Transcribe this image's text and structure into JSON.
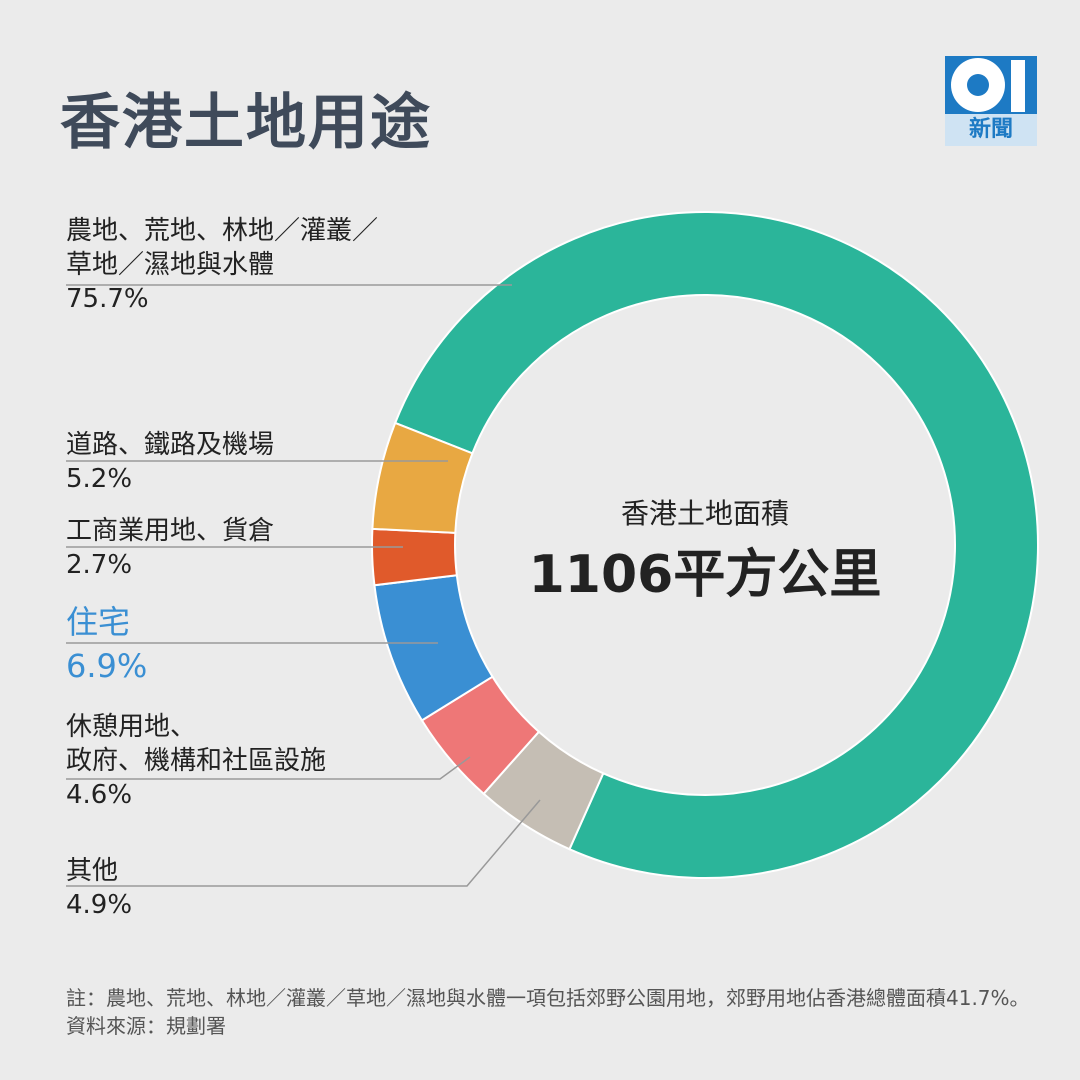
{
  "title": "香港土地用途",
  "logo": {
    "text": "新聞",
    "mark": "01"
  },
  "chart_data": {
    "type": "pie",
    "title": "香港土地用途",
    "center_label": "香港土地面積",
    "center_value": "1106平方公里",
    "start_angle_deg": 291.5,
    "slices": [
      {
        "label": "農地、荒地、林地／灌叢／草地／濕地與水體",
        "value": 75.7,
        "value_label": "75.7%",
        "color": "#2bb59a"
      },
      {
        "label": "其他",
        "value": 4.9,
        "value_label": "4.9%",
        "color": "#c5beb4"
      },
      {
        "label": "休憩用地、政府、機構和社區設施",
        "value": 4.6,
        "value_label": "4.6%",
        "color": "#ee7777"
      },
      {
        "label": "住宅",
        "value": 6.9,
        "value_label": "6.9%",
        "color": "#3a8fd3"
      },
      {
        "label": "工商業用地、貨倉",
        "value": 2.7,
        "value_label": "2.7%",
        "color": "#e05a2b"
      },
      {
        "label": "道路、鐵路及機場",
        "value": 5.2,
        "value_label": "5.2%",
        "color": "#e8a842"
      }
    ]
  },
  "labels": {
    "l1a": "農地、荒地、林地／灌叢／",
    "l1b": "草地／濕地與水體",
    "l1v": "75.7%",
    "l2a": "道路、鐵路及機場",
    "l2v": "5.2%",
    "l3a": "工商業用地、貨倉",
    "l3v": "2.7%",
    "l4a": "住宅",
    "l4v": "6.9%",
    "l5a": "休憩用地、",
    "l5b": "政府、機構和社區設施",
    "l5v": "4.6%",
    "l6a": "其他",
    "l6v": "4.9%"
  },
  "note": "註：農地、荒地、林地／灌叢／草地／濕地與水體一項包括郊野公園用地，郊野用地佔香港總體面積41.7%。",
  "source": "資料來源：規劃署"
}
